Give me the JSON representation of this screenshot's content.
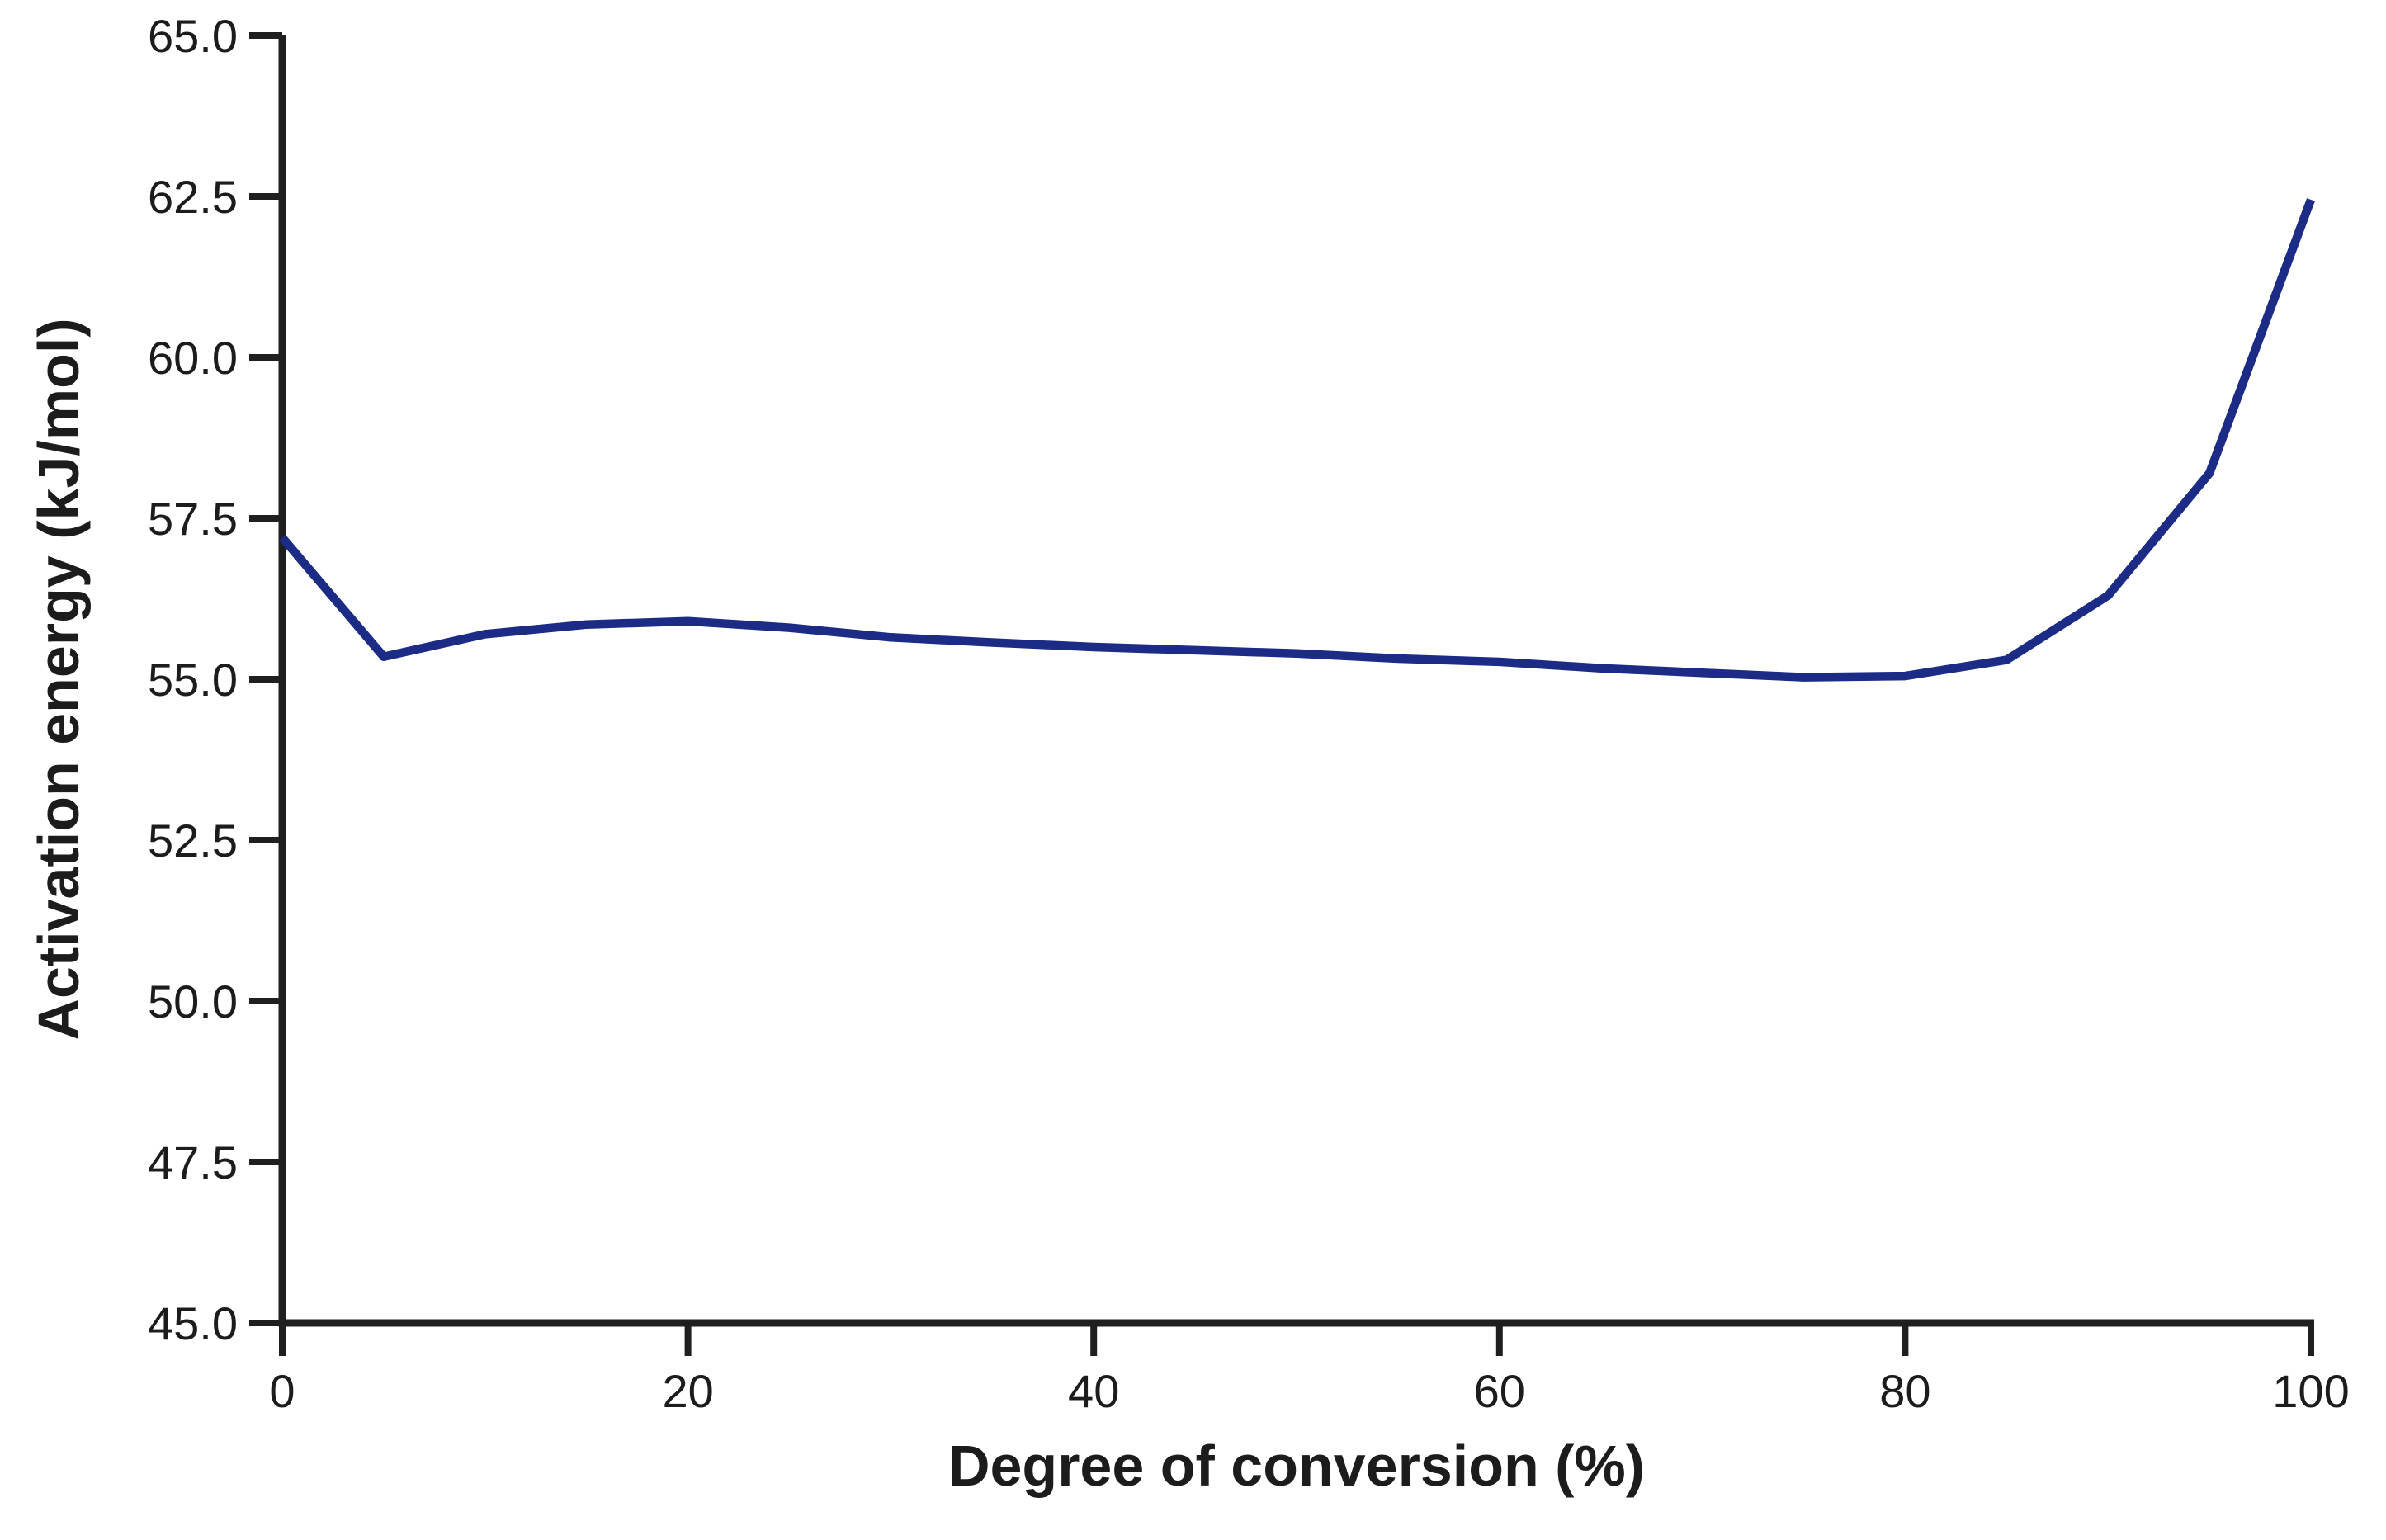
{
  "chart_data": {
    "type": "line",
    "xlabel": "Degree of conversion (%)",
    "ylabel": "Activation energy (kJ/mol)",
    "x": [
      0,
      5,
      10,
      15,
      20,
      25,
      30,
      35,
      40,
      45,
      50,
      55,
      60,
      65,
      70,
      75,
      80,
      85,
      90,
      95,
      100
    ],
    "series": [
      {
        "name": "Activation energy",
        "values": [
          57.2,
          55.35,
          55.7,
          55.85,
          55.9,
          55.8,
          55.65,
          55.57,
          55.5,
          55.45,
          55.4,
          55.32,
          55.27,
          55.17,
          55.1,
          55.03,
          55.05,
          55.3,
          56.3,
          58.2,
          62.45
        ],
        "color": "#1b2b86"
      }
    ],
    "xlim": [
      0,
      100
    ],
    "ylim": [
      45.0,
      65.0
    ],
    "xticks": [
      0,
      20,
      40,
      60,
      80,
      100
    ],
    "xtick_labels": [
      "0",
      "20",
      "40",
      "60",
      "80",
      "100"
    ],
    "yticks": [
      45.0,
      47.5,
      50.0,
      52.5,
      55.0,
      57.5,
      60.0,
      62.5,
      65.0
    ],
    "ytick_labels": [
      "45.0",
      "47.5",
      "50.0",
      "52.5",
      "55.0",
      "57.5",
      "60.0",
      "62.5",
      "65.0"
    ],
    "grid": false,
    "legend_position": "none"
  },
  "colors": {
    "line": "#1b2b86",
    "axis": "#1f1f1f",
    "text": "#1c1c1c",
    "background": "#ffffff"
  }
}
